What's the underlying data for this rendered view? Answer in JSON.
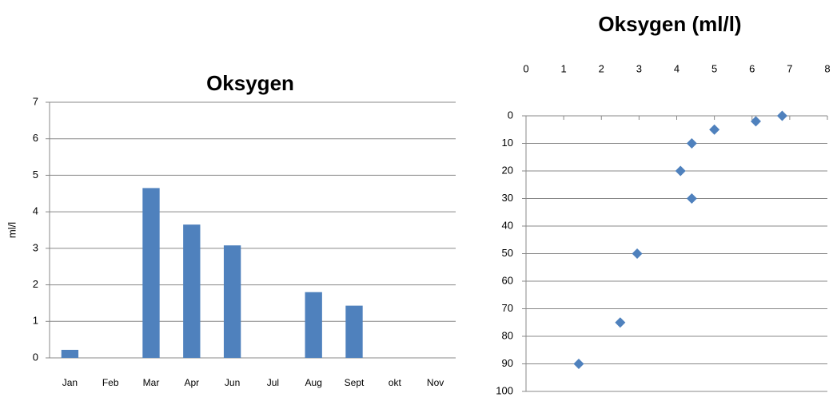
{
  "chart_data": [
    {
      "type": "bar",
      "title": "Oksygen",
      "ylabel": "ml/l",
      "categories": [
        "Jan",
        "Feb",
        "Mar",
        "Apr",
        "Jun",
        "Jul",
        "Aug",
        "Sept",
        "okt",
        "Nov"
      ],
      "values": [
        0.22,
        null,
        4.65,
        3.65,
        3.08,
        null,
        1.8,
        1.43,
        null,
        null
      ],
      "color": "#4f81bd",
      "ylim": [
        0,
        7
      ],
      "yticks": [
        0,
        1,
        2,
        3,
        4,
        5,
        6,
        7
      ],
      "grid": true
    },
    {
      "type": "scatter",
      "title": "Oksygen (ml/l)",
      "x": [
        6.8,
        6.1,
        5.0,
        4.4,
        4.1,
        4.4,
        2.95,
        2.5,
        1.4
      ],
      "values": [
        0,
        2,
        5,
        10,
        20,
        30,
        50,
        75,
        90
      ],
      "color": "#4f81bd",
      "xlim": [
        0,
        8
      ],
      "xticks": [
        0,
        1,
        2,
        3,
        4,
        5,
        6,
        7,
        8
      ],
      "ylim": [
        0,
        100
      ],
      "yticks": [
        0,
        10,
        20,
        30,
        40,
        50,
        60,
        70,
        80,
        90,
        100
      ],
      "y_inverted": true,
      "x_axis_position": "top",
      "grid": true
    }
  ]
}
